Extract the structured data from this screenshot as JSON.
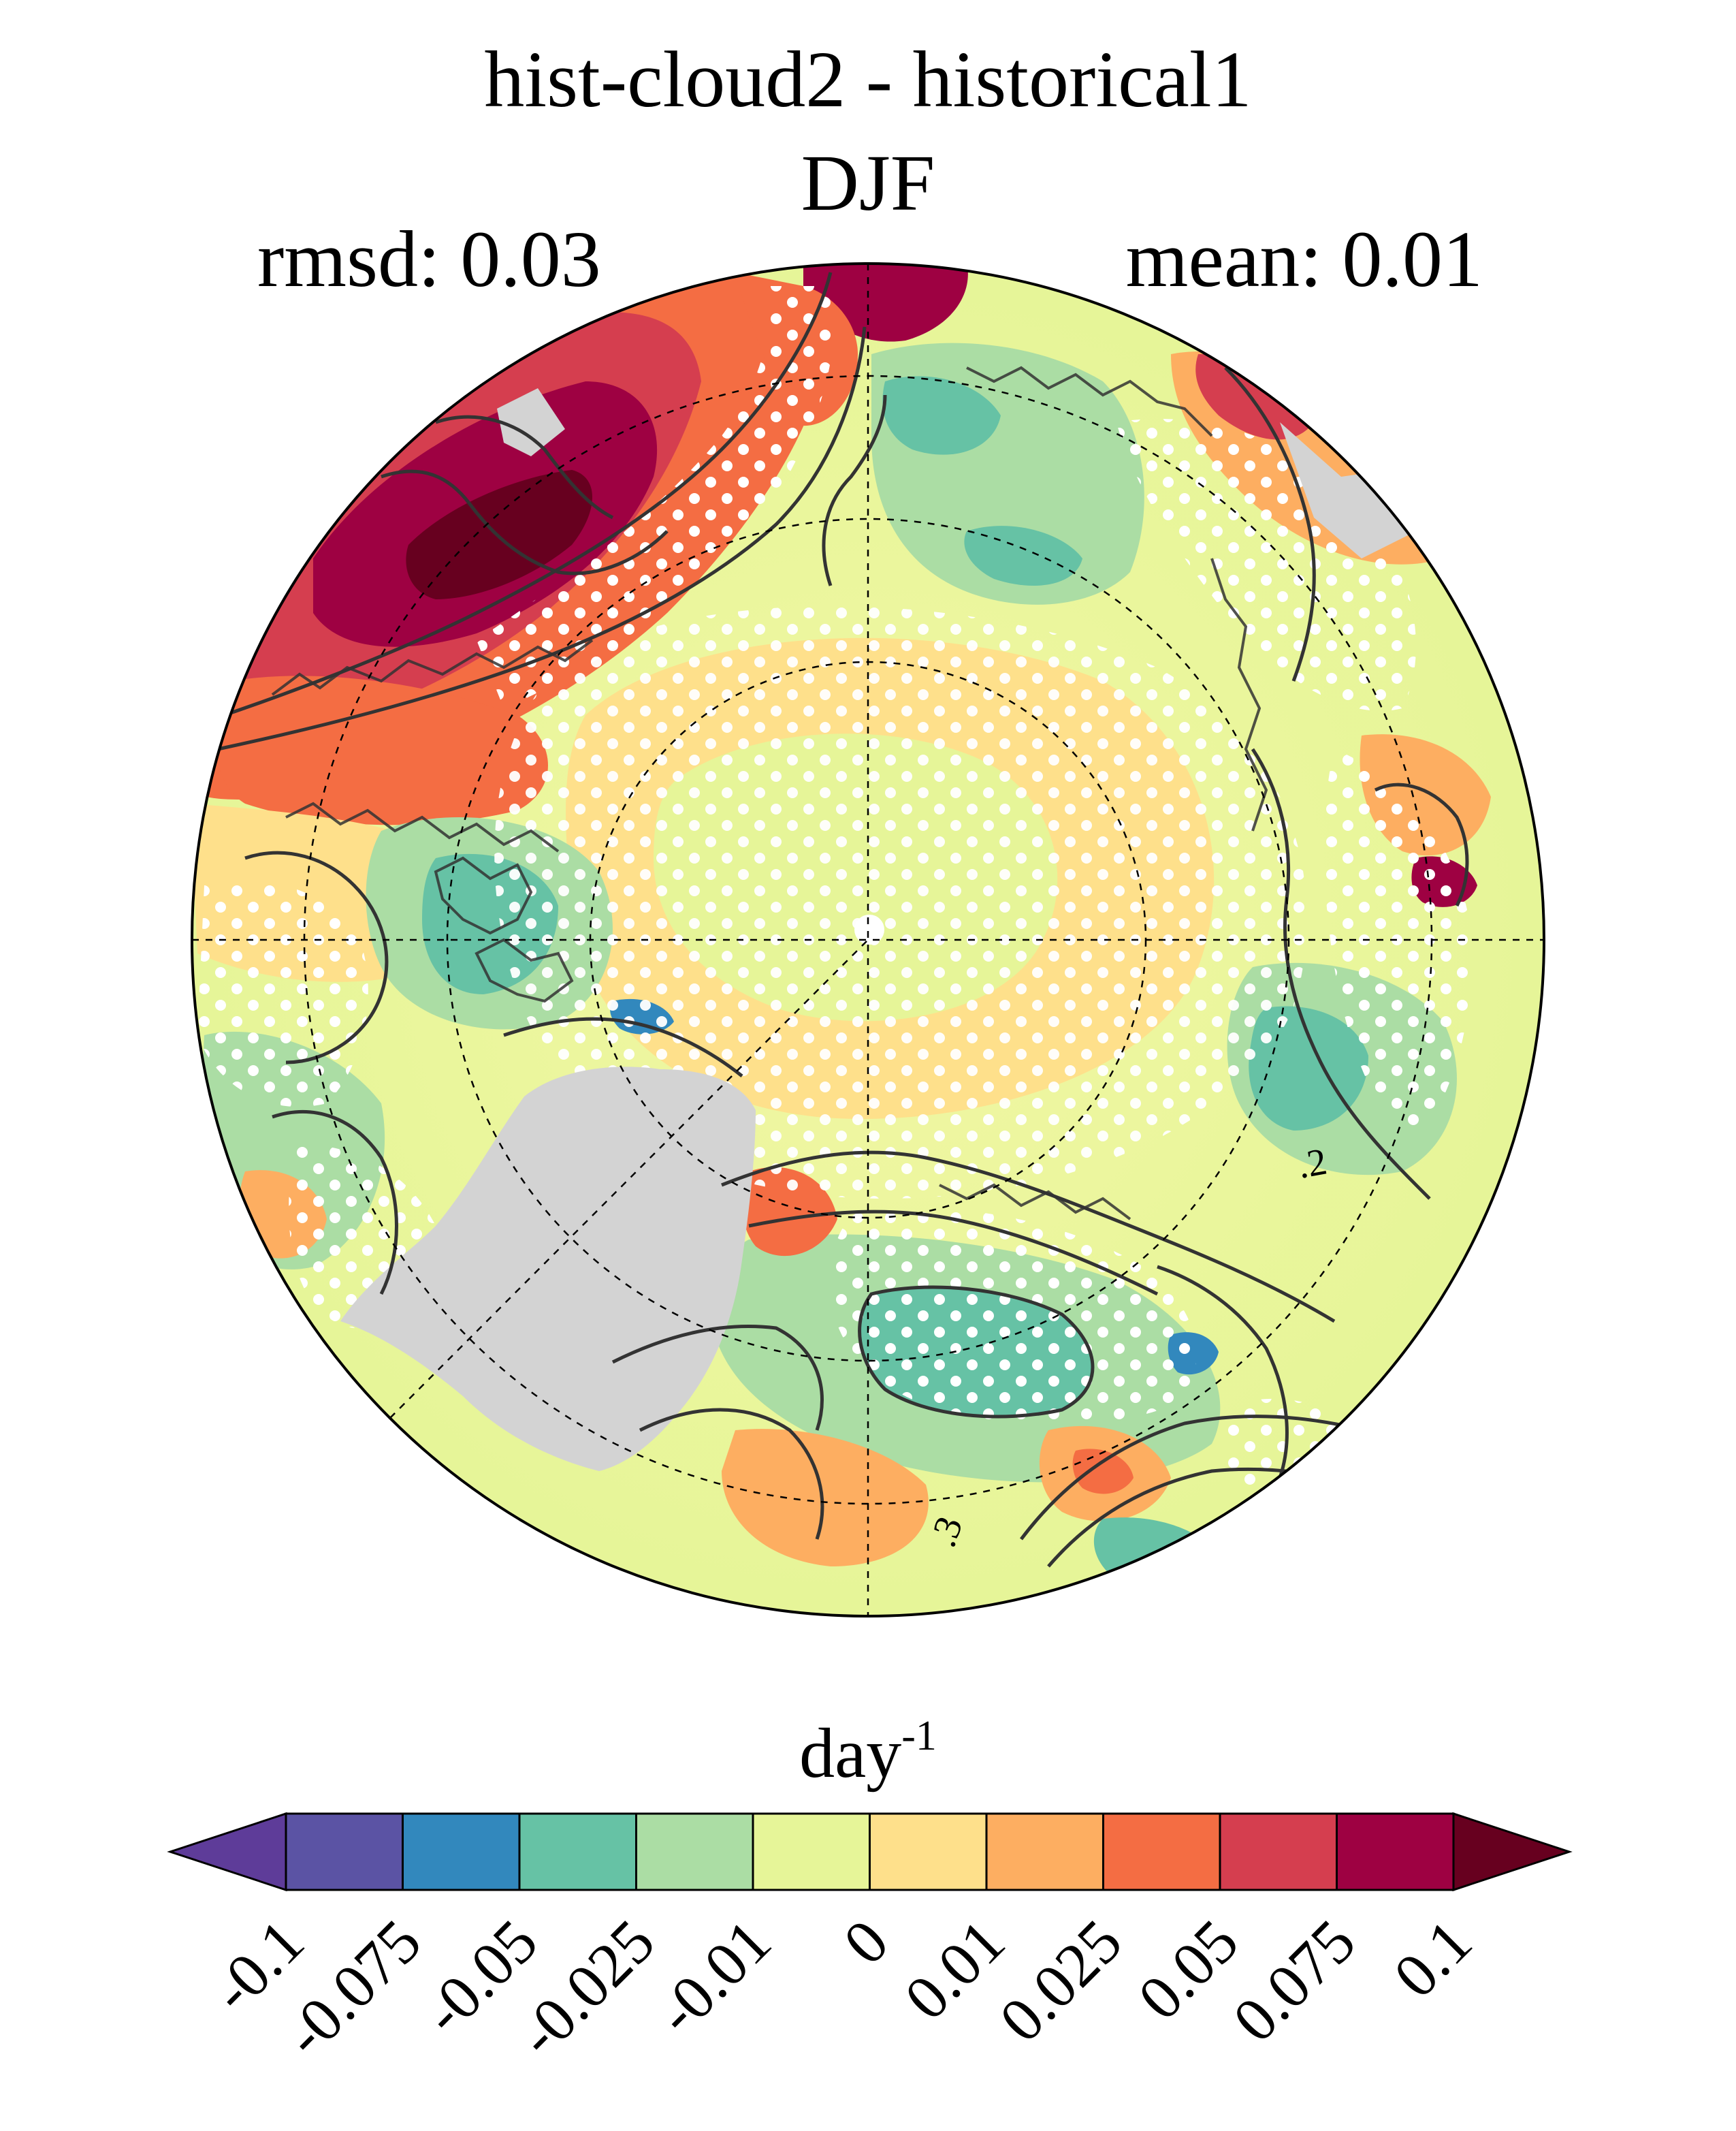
{
  "header": {
    "title": "hist-cloud2 - historical1",
    "season": "DJF",
    "rmsd_label": "rmsd: 0.03",
    "mean_label": "mean: 0.01"
  },
  "map": {
    "projection": "north polar stereographic",
    "land_mask_color": "#d3d3d3",
    "stipple_color": "#ffffff",
    "contour_color": "#333333",
    "contour_labels": [
      ".2",
      ".3"
    ]
  },
  "colorbar": {
    "units_base": "day",
    "units_exponent": "-1",
    "tick_labels": [
      "-0.1",
      "-0.075",
      "-0.05",
      "-0.025",
      "-0.01",
      "0",
      "0.01",
      "0.025",
      "0.05",
      "0.075",
      "0.1"
    ],
    "colors": [
      "#5e3c99",
      "#5b53a4",
      "#3288bd",
      "#66c2a5",
      "#abdda4",
      "#e6f598",
      "#fee08b",
      "#fdae61",
      "#f46d43",
      "#d53e4f",
      "#9e0142",
      "#67001f"
    ]
  }
}
